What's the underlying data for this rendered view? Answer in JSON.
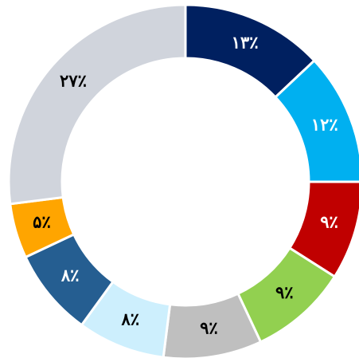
{
  "chart_data": {
    "type": "donut",
    "values": [
      13,
      12,
      9,
      9,
      9,
      8,
      8,
      5,
      27
    ],
    "value_labels": [
      "۱۳٪",
      "۱۲٪",
      "۹٪",
      "۹٪",
      "۹٪",
      "۸٪",
      "۸٪",
      "۵٪",
      "۲۷٪"
    ],
    "colors": [
      "#002060",
      "#00b0f0",
      "#c00000",
      "#92d050",
      "#bfbfbf",
      "#cdeffd",
      "#255e91",
      "#ffa500",
      "#d0d4dc"
    ]
  }
}
